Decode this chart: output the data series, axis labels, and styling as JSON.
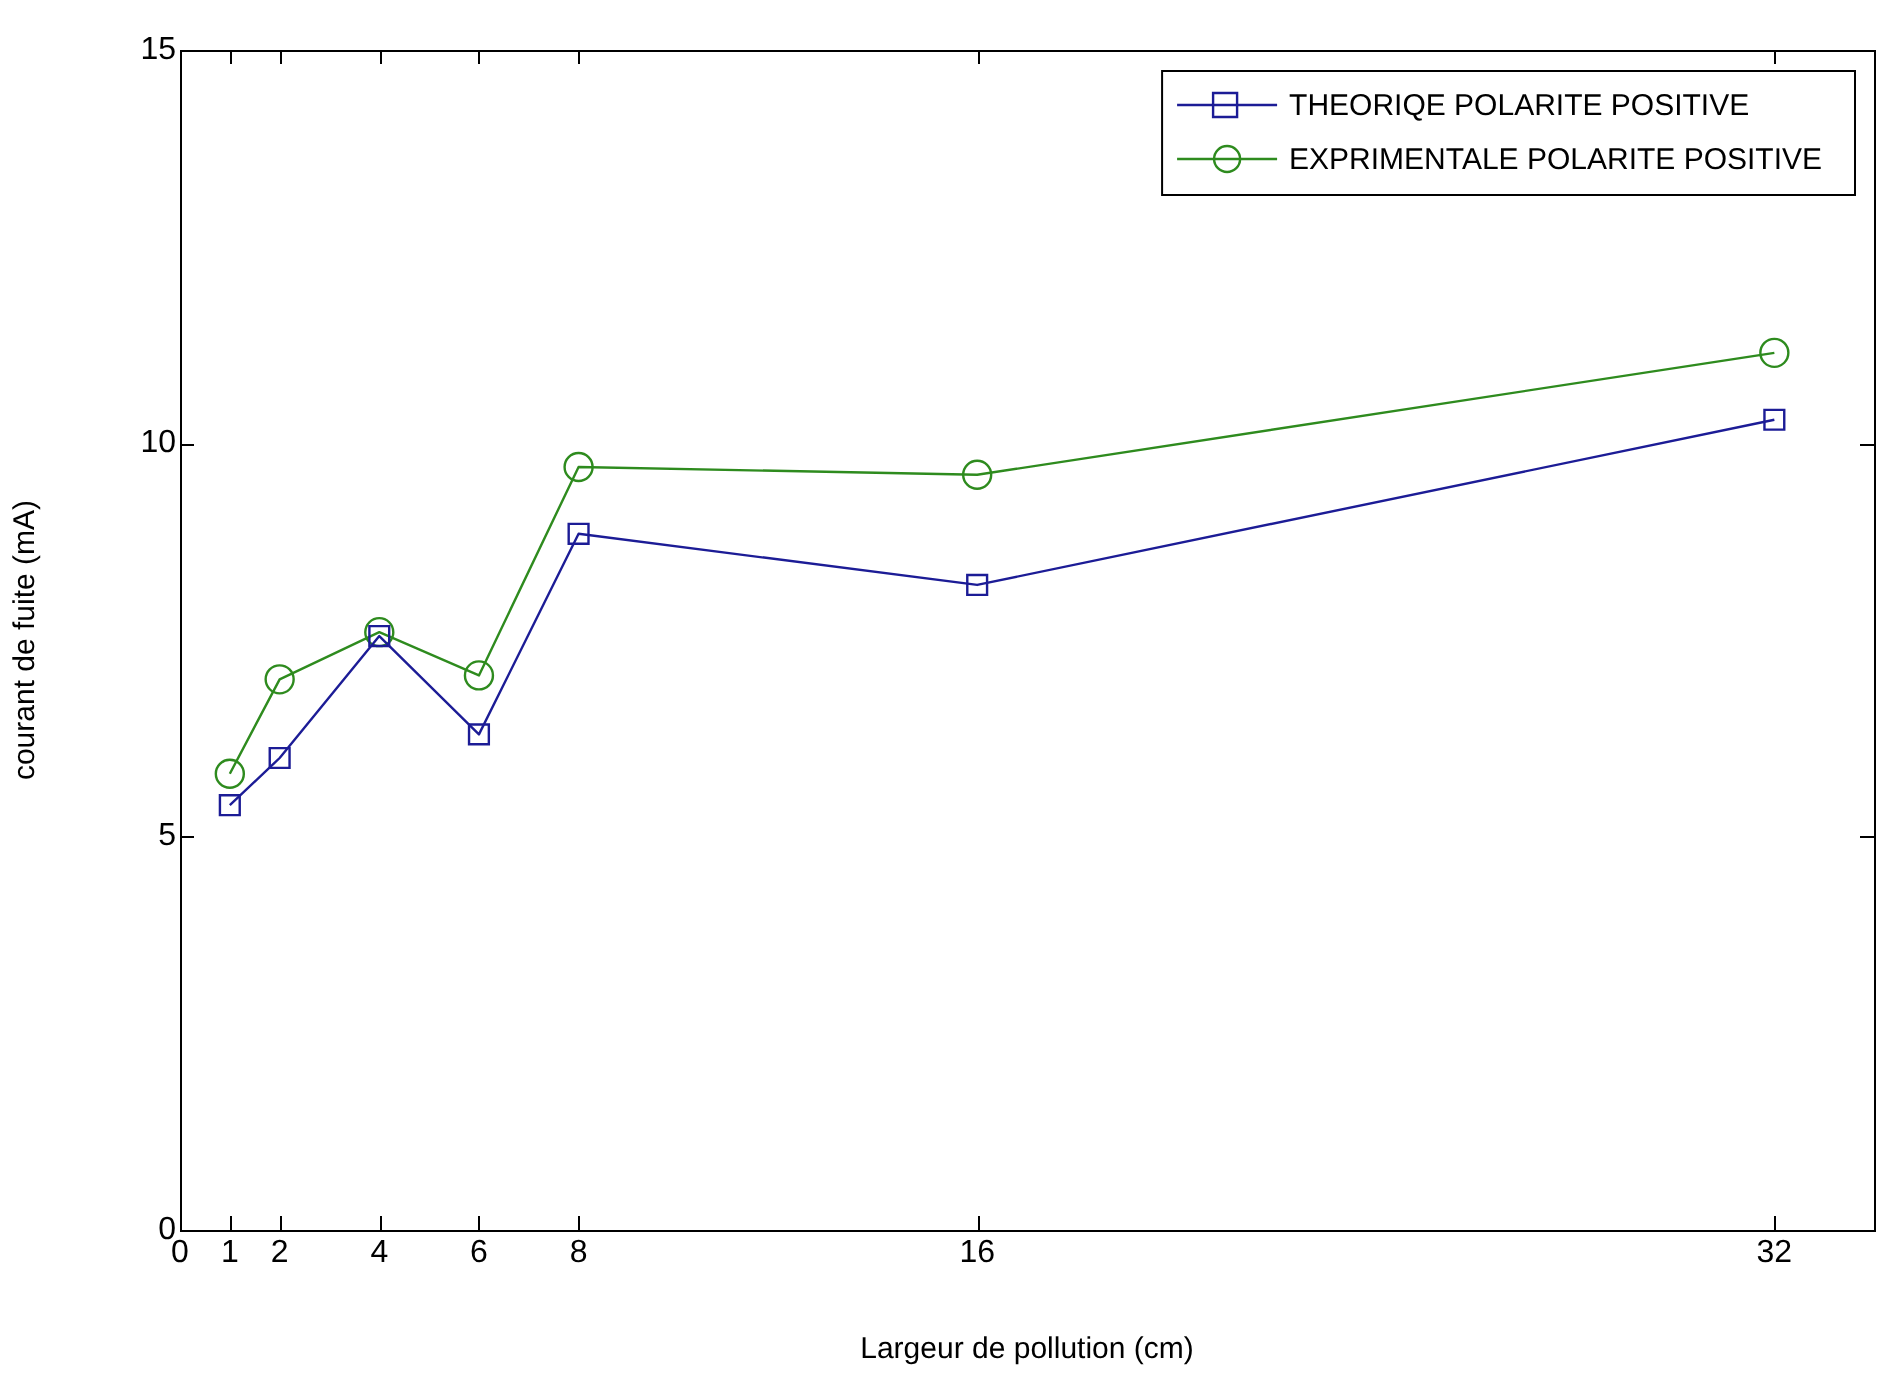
{
  "chart_data": {
    "type": "line",
    "xlabel": "Largeur de pollution (cm)",
    "ylabel": "courant de fuite (mA)",
    "x": [
      1,
      2,
      4,
      6,
      8,
      16,
      32
    ],
    "series": [
      {
        "name": "THEORIQE POLARITE POSITIVE",
        "color": "#1c1c96",
        "marker": "square",
        "values": [
          5.4,
          6.0,
          7.55,
          6.3,
          8.85,
          8.2,
          10.3
        ]
      },
      {
        "name": "EXPRIMENTALE POLARITE POSITIVE",
        "color": "#2e8b1e",
        "marker": "circle",
        "values": [
          5.8,
          7.0,
          7.6,
          7.05,
          9.7,
          9.6,
          11.15
        ]
      }
    ],
    "xlim": [
      0,
      34
    ],
    "xticks": [
      0,
      1,
      2,
      4,
      6,
      8,
      16,
      32
    ],
    "ylim": [
      0,
      15
    ],
    "yticks": [
      0,
      5,
      10,
      15
    ],
    "grid": false,
    "legend": "top right",
    "line_style": "solid"
  }
}
